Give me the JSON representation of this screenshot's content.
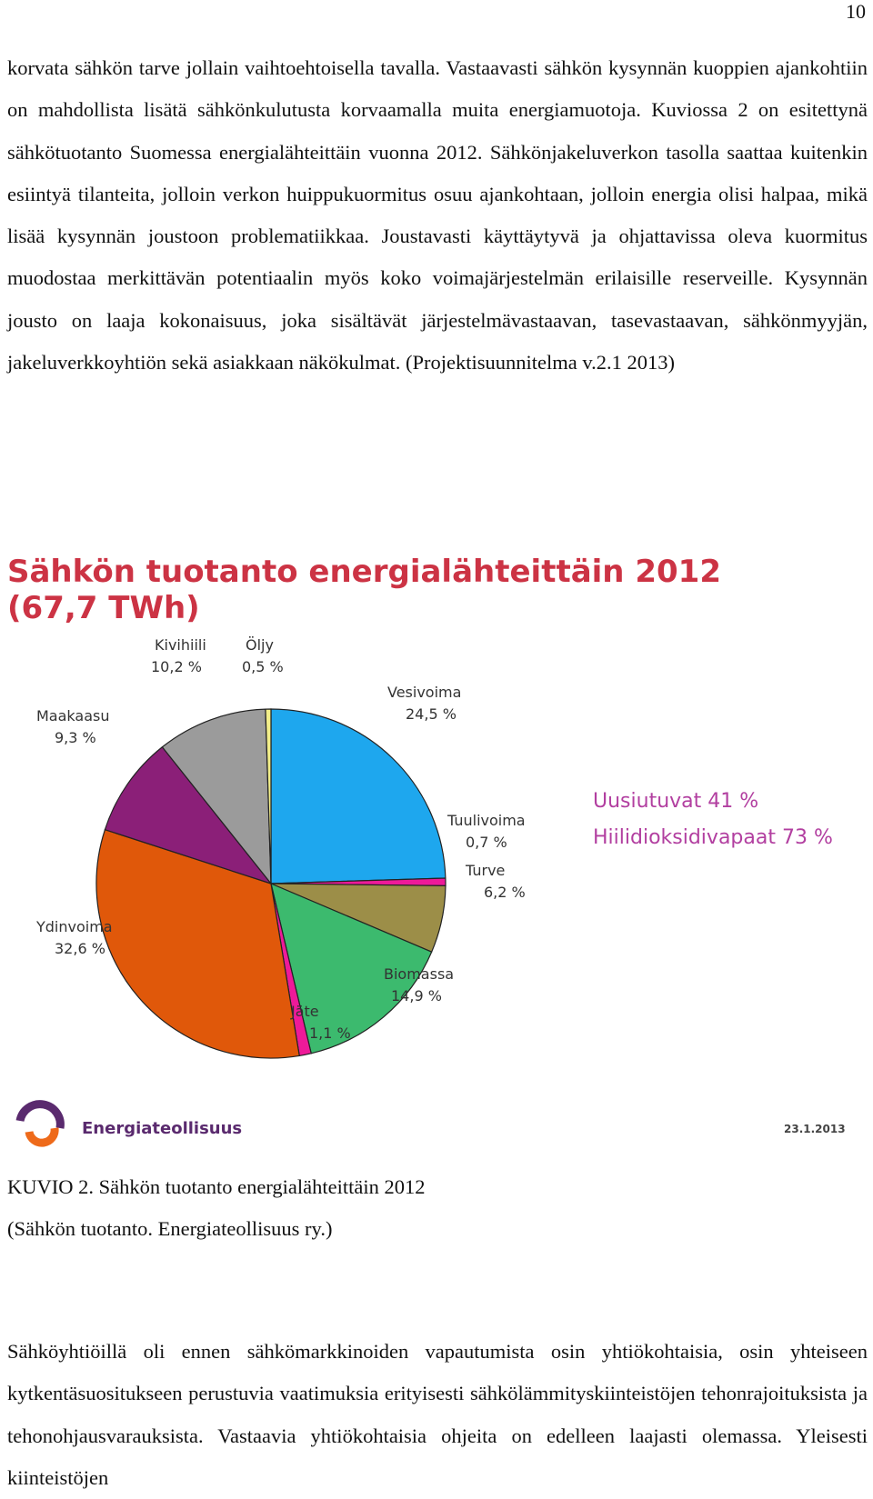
{
  "page_number": "10",
  "paragraph_1": "korvata sähkön tarve jollain vaihtoehtoisella tavalla. Vastaavasti sähkön kysynnän kuoppien ajankohtiin on mahdollista lisätä sähkönkulutusta korvaamalla muita energiamuotoja. Kuviossa 2 on esitettynä sähkötuotanto Suomessa energialähteittäin vuonna 2012. Sähkönjakeluverkon tasolla saattaa kuitenkin esiintyä tilanteita, jolloin verkon huippukuormitus osuu ajankohtaan, jolloin energia olisi halpaa, mikä lisää kysynnän joustoon problematiikkaa. Joustavasti käyttäytyvä ja ohjattavissa oleva kuormitus muodostaa merkittävän potentiaalin myös koko voimajärjestelmän erilaisille reserveille. Kysynnän jousto on laaja kokonaisuus, joka sisältävät järjestelmävastaavan, tasevastaavan, sähkönmyyjän, jakeluverkkoyhtiön sekä asiakkaan näkökulmat. (Projektisuunnitelma v.2.1 2013)",
  "chart_data": {
    "type": "pie",
    "title": "Sähkön tuotanto energialähteittäin 2012",
    "subtitle": "(67,7 TWh)",
    "slices": [
      {
        "name": "Vesivoima",
        "label": "24,5 %",
        "value": 24.5,
        "color": "#1ea7ee"
      },
      {
        "name": "Tuulivoima",
        "label": "0,7 %",
        "value": 0.7,
        "color": "#ee1a99"
      },
      {
        "name": "Turve",
        "label": "6,2 %",
        "value": 6.2,
        "color": "#9c8e48"
      },
      {
        "name": "Biomassa",
        "label": "14,9 %",
        "value": 14.9,
        "color": "#3cba6e"
      },
      {
        "name": "Jäte",
        "label": "1,1 %",
        "value": 1.1,
        "color": "#ee1a99"
      },
      {
        "name": "Ydinvoima",
        "label": "32,6 %",
        "value": 32.6,
        "color": "#e0580a"
      },
      {
        "name": "Maakaasu",
        "label": "9,3 %",
        "value": 9.3,
        "color": "#8b1f78"
      },
      {
        "name": "Kivihiili",
        "label": "10,2 %",
        "value": 10.2,
        "color": "#9b9b9b"
      },
      {
        "name": "Öljy",
        "label": "0,5 %",
        "value": 0.5,
        "color": "#f2ee8a"
      }
    ],
    "summary": [
      "Uusiutuvat 41 %",
      "Hiilidioksidivapaat 73 %"
    ],
    "source_logo_text": "Energiateollisuus",
    "date": "23.1.2013"
  },
  "caption": {
    "line1": "KUVIO 2. Sähkön tuotanto energialähteittäin 2012",
    "line2": "(Sähkön tuotanto. Energiateollisuus ry.)"
  },
  "paragraph_2": "Sähköyhtiöillä oli ennen sähkömarkkinoiden vapautumista osin yhtiökohtaisia, osin yhteiseen kytkentäsuositukseen perustuvia vaatimuksia erityisesti sähkölämmityskiinteistöjen tehonrajoituksista ja tehonohjausvarauksista. Vastaavia yhtiökohtaisia ohjeita on edelleen laajasti olemassa. Yleisesti kiinteistöjen"
}
